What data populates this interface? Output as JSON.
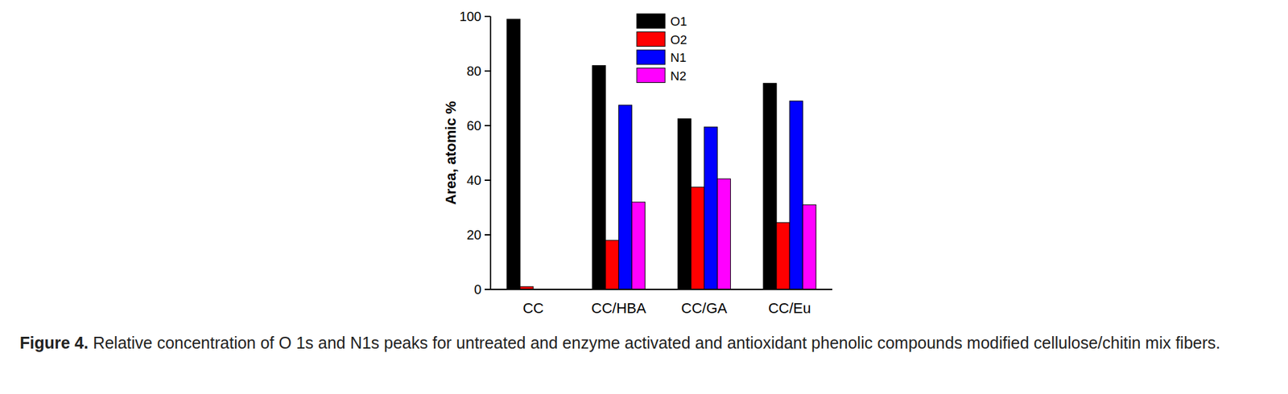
{
  "chart_data": {
    "type": "bar",
    "figure_label": "Figure 4.",
    "caption": "Relative concentration of O 1s and N1s peaks for untreated and enzyme activated and antioxidant phenolic compounds modified cellulose/chitin mix fibers.",
    "y_label": "Area, atomic %",
    "categories": [
      "CC",
      "CC/HBA",
      "CC/GA",
      "CC/Eu"
    ],
    "series": [
      {
        "name": "O1",
        "color": "#000000",
        "values": [
          99,
          82,
          62.5,
          75.5
        ]
      },
      {
        "name": "O2",
        "color": "#ff0000",
        "values": [
          1,
          18,
          37.5,
          24.5
        ]
      },
      {
        "name": "N1",
        "color": "#0000ff",
        "values": [
          0,
          67.5,
          59.5,
          69
        ]
      },
      {
        "name": "N2",
        "color": "#ff00ff",
        "values": [
          0,
          32,
          40.5,
          31
        ]
      }
    ],
    "ylim": [
      0,
      100
    ],
    "yticks": [
      0,
      20,
      40,
      60,
      80,
      100
    ],
    "grid": false,
    "legend": "top"
  }
}
